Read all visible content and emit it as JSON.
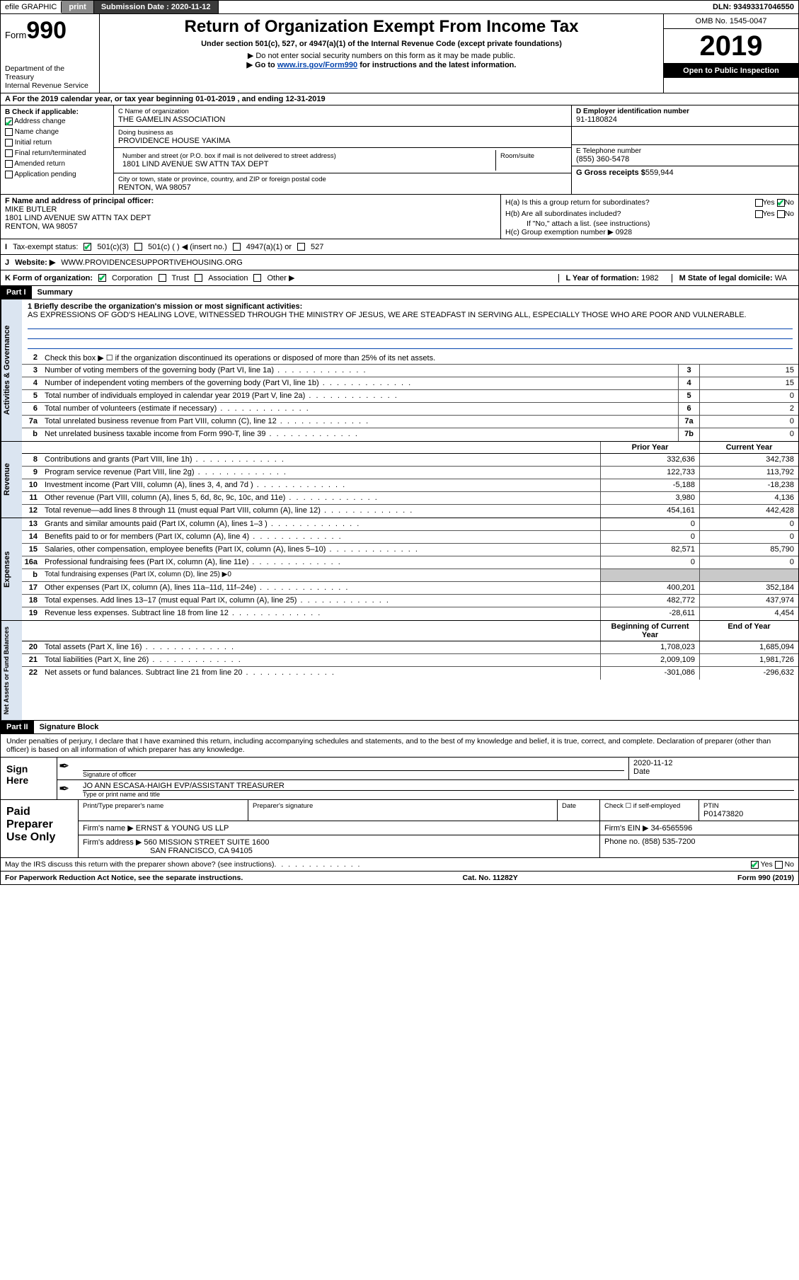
{
  "topbar": {
    "efile": "efile GRAPHIC",
    "print": "print",
    "submission_label": "Submission Date :",
    "submission_date": "2020-11-12",
    "dln_label": "DLN:",
    "dln": "93493317046550"
  },
  "header": {
    "form_label": "Form",
    "form_number": "990",
    "dept": "Department of the Treasury\nInternal Revenue Service",
    "title": "Return of Organization Exempt From Income Tax",
    "subtitle": "Under section 501(c), 527, or 4947(a)(1) of the Internal Revenue Code (except private foundations)",
    "note1": "▶ Do not enter social security numbers on this form as it may be made public.",
    "note2_pre": "▶ Go to ",
    "note2_link": "www.irs.gov/Form990",
    "note2_post": " for instructions and the latest information.",
    "omb": "OMB No. 1545-0047",
    "year": "2019",
    "open": "Open to Public Inspection"
  },
  "row_a": "A For the 2019 calendar year, or tax year beginning 01-01-2019    , and ending 12-31-2019",
  "col_b": {
    "label": "B Check if applicable:",
    "items": [
      "Address change",
      "Name change",
      "Initial return",
      "Final return/terminated",
      "Amended return",
      "Application pending"
    ],
    "checked_index": 0
  },
  "col_c": {
    "c_label": "C Name of organization",
    "org": "THE GAMELIN ASSOCIATION",
    "dba_label": "Doing business as",
    "dba": "PROVIDENCE HOUSE YAKIMA",
    "street_label": "Number and street (or P.O. box if mail is not delivered to street address)",
    "room_label": "Room/suite",
    "street": "1801 LIND AVENUE SW ATTN TAX DEPT",
    "city_label": "City or town, state or province, country, and ZIP or foreign postal code",
    "city": "RENTON, WA  98057"
  },
  "col_d": {
    "d_label": "D Employer identification number",
    "ein": "91-1180824",
    "e_label": "E Telephone number",
    "phone": "(855) 360-5478",
    "g_label": "G Gross receipts $",
    "gross": "559,944"
  },
  "col_f": {
    "label": "F  Name and address of principal officer:",
    "name": "MIKE BUTLER",
    "addr1": "1801 LIND AVENUE SW ATTN TAX DEPT",
    "addr2": "RENTON, WA  98057"
  },
  "col_h": {
    "ha": "H(a)  Is this a group return for subordinates?",
    "hb": "H(b)  Are all subordinates included?",
    "hb_note": "If \"No,\" attach a list. (see instructions)",
    "hc": "H(c)  Group exemption number ▶   0928",
    "yes": "Yes",
    "no": "No"
  },
  "row_tax": {
    "label": "Tax-exempt status:",
    "opt1": "501(c)(3)",
    "opt2": "501(c) (   )  ◀ (insert no.)",
    "opt3": "4947(a)(1) or",
    "opt4": "527"
  },
  "row_web": {
    "j": "J",
    "label": "Website: ▶",
    "url": "WWW.PROVIDENCESUPPORTIVEHOUSING.ORG"
  },
  "row_k": {
    "label": "K Form of organization:",
    "opts": [
      "Corporation",
      "Trust",
      "Association",
      "Other ▶"
    ],
    "l_label": "L Year of formation:",
    "l_val": "1982",
    "m_label": "M State of legal domicile:",
    "m_val": "WA"
  },
  "part1": {
    "tag": "Part I",
    "title": "Summary"
  },
  "gov": {
    "vtab": "Activities & Governance",
    "l1_label": "1  Briefly describe the organization's mission or most significant activities:",
    "mission": "AS EXPRESSIONS OF GOD'S HEALING LOVE, WITNESSED THROUGH THE MINISTRY OF JESUS, WE ARE STEADFAST IN SERVING ALL, ESPECIALLY THOSE WHO ARE POOR AND VULNERABLE.",
    "l2": "Check this box ▶ ☐  if the organization discontinued its operations or disposed of more than 25% of its net assets.",
    "lines": [
      {
        "n": "3",
        "d": "Number of voting members of the governing body (Part VI, line 1a)",
        "b": "3",
        "v": "15"
      },
      {
        "n": "4",
        "d": "Number of independent voting members of the governing body (Part VI, line 1b)",
        "b": "4",
        "v": "15"
      },
      {
        "n": "5",
        "d": "Total number of individuals employed in calendar year 2019 (Part V, line 2a)",
        "b": "5",
        "v": "0"
      },
      {
        "n": "6",
        "d": "Total number of volunteers (estimate if necessary)",
        "b": "6",
        "v": "2"
      },
      {
        "n": "7a",
        "d": "Total unrelated business revenue from Part VIII, column (C), line 12",
        "b": "7a",
        "v": "0"
      },
      {
        "n": "b",
        "d": "Net unrelated business taxable income from Form 990-T, line 39",
        "b": "7b",
        "v": "0"
      }
    ]
  },
  "cols": {
    "prior": "Prior Year",
    "current": "Current Year",
    "boy": "Beginning of Current Year",
    "eoy": "End of Year"
  },
  "rev": {
    "vtab": "Revenue",
    "lines": [
      {
        "n": "8",
        "d": "Contributions and grants (Part VIII, line 1h)",
        "p": "332,636",
        "c": "342,738"
      },
      {
        "n": "9",
        "d": "Program service revenue (Part VIII, line 2g)",
        "p": "122,733",
        "c": "113,792"
      },
      {
        "n": "10",
        "d": "Investment income (Part VIII, column (A), lines 3, 4, and 7d )",
        "p": "-5,188",
        "c": "-18,238"
      },
      {
        "n": "11",
        "d": "Other revenue (Part VIII, column (A), lines 5, 6d, 8c, 9c, 10c, and 11e)",
        "p": "3,980",
        "c": "4,136"
      },
      {
        "n": "12",
        "d": "Total revenue—add lines 8 through 11 (must equal Part VIII, column (A), line 12)",
        "p": "454,161",
        "c": "442,428"
      }
    ]
  },
  "exp": {
    "vtab": "Expenses",
    "lines": [
      {
        "n": "13",
        "d": "Grants and similar amounts paid (Part IX, column (A), lines 1–3 )",
        "p": "0",
        "c": "0"
      },
      {
        "n": "14",
        "d": "Benefits paid to or for members (Part IX, column (A), line 4)",
        "p": "0",
        "c": "0"
      },
      {
        "n": "15",
        "d": "Salaries, other compensation, employee benefits (Part IX, column (A), lines 5–10)",
        "p": "82,571",
        "c": "85,790"
      },
      {
        "n": "16a",
        "d": "Professional fundraising fees (Part IX, column (A), line 11e)",
        "p": "0",
        "c": "0"
      },
      {
        "n": "b",
        "d": "Total fundraising expenses (Part IX, column (D), line 25) ▶0",
        "shade": true
      },
      {
        "n": "17",
        "d": "Other expenses (Part IX, column (A), lines 11a–11d, 11f–24e)",
        "p": "400,201",
        "c": "352,184"
      },
      {
        "n": "18",
        "d": "Total expenses. Add lines 13–17 (must equal Part IX, column (A), line 25)",
        "p": "482,772",
        "c": "437,974"
      },
      {
        "n": "19",
        "d": "Revenue less expenses. Subtract line 18 from line 12",
        "p": "-28,611",
        "c": "4,454"
      }
    ]
  },
  "net": {
    "vtab": "Net Assets or Fund Balances",
    "lines": [
      {
        "n": "20",
        "d": "Total assets (Part X, line 16)",
        "p": "1,708,023",
        "c": "1,685,094"
      },
      {
        "n": "21",
        "d": "Total liabilities (Part X, line 26)",
        "p": "2,009,109",
        "c": "1,981,726"
      },
      {
        "n": "22",
        "d": "Net assets or fund balances. Subtract line 21 from line 20",
        "p": "-301,086",
        "c": "-296,632"
      }
    ]
  },
  "part2": {
    "tag": "Part II",
    "title": "Signature Block"
  },
  "sig": {
    "decl": "Under penalties of perjury, I declare that I have examined this return, including accompanying schedules and statements, and to the best of my knowledge and belief, it is true, correct, and complete. Declaration of preparer (other than officer) is based on all information of which preparer has any knowledge.",
    "sign_here": "Sign Here",
    "sig_officer_lbl": "Signature of officer",
    "date_lbl": "Date",
    "date": "2020-11-12",
    "name": "JO ANN ESCASA-HAIGH  EVP/ASSISTANT TREASURER",
    "name_lbl": "Type or print name and title"
  },
  "prep": {
    "lbl": "Paid Preparer Use Only",
    "h": [
      "Print/Type preparer's name",
      "Preparer's signature",
      "Date"
    ],
    "check_lbl": "Check ☐ if self-employed",
    "ptin_lbl": "PTIN",
    "ptin": "P01473820",
    "firm_name_lbl": "Firm's name    ▶",
    "firm_name": "ERNST & YOUNG US LLP",
    "firm_ein_lbl": "Firm's EIN ▶",
    "firm_ein": "34-6565596",
    "firm_addr_lbl": "Firm's address ▶",
    "firm_addr1": "560 MISSION STREET SUITE 1600",
    "firm_addr2": "SAN FRANCISCO, CA  94105",
    "phone_lbl": "Phone no.",
    "phone": "(858) 535-7200"
  },
  "discuss": {
    "q": "May the IRS discuss this return with the preparer shown above? (see instructions)",
    "yes": "Yes",
    "no": "No"
  },
  "footer": {
    "left": "For Paperwork Reduction Act Notice, see the separate instructions.",
    "mid": "Cat. No. 11282Y",
    "right": "Form 990 (2019)"
  },
  "colors": {
    "link": "#0645ad",
    "vtab_bg": "#dbe5f1",
    "shade": "#c9c9c9",
    "btn_gray": "#8a8a8a",
    "btn_dark": "#3a3a3a"
  }
}
